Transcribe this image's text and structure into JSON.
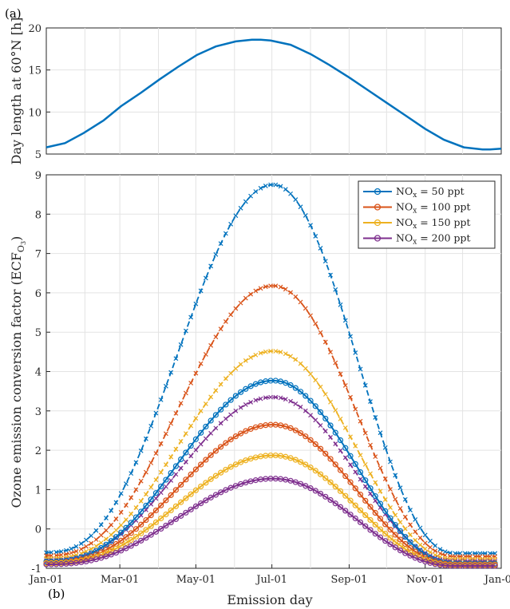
{
  "panel_labels": {
    "a": "(a)",
    "b": "(b)"
  },
  "chart_data": [
    {
      "type": "line",
      "panel": "(a)",
      "ylabel": "Day length at 60°N [h]",
      "ylim": [
        5,
        20
      ],
      "yticks": [
        "5",
        "10",
        "15",
        "20"
      ],
      "grid": true,
      "x_range": [
        "Jan-01",
        "Jan-01 (next year)"
      ],
      "series": [
        {
          "color": "#0072BD",
          "x_days": [
            0,
            15,
            30,
            46,
            60,
            76,
            91,
            106,
            121,
            136,
            152,
            165,
            172,
            180,
            196,
            212,
            227,
            243,
            258,
            273,
            288,
            304,
            319,
            335,
            350,
            356,
            365
          ],
          "values": [
            5.8,
            6.3,
            7.5,
            9.0,
            10.7,
            12.3,
            13.9,
            15.4,
            16.8,
            17.8,
            18.4,
            18.6,
            18.6,
            18.5,
            18.0,
            16.9,
            15.6,
            14.1,
            12.6,
            11.1,
            9.6,
            8.0,
            6.7,
            5.8,
            5.55,
            5.55,
            5.65
          ]
        }
      ]
    },
    {
      "type": "line",
      "panel": "(b)",
      "xlabel": "Emission day",
      "ylabel": "Ozone emission conversion factor (ECF",
      "ylabel_sub": "O",
      "ylabel_subsub": "3",
      "ylabel_end": ")",
      "ylim": [
        -1,
        9
      ],
      "yticks": [
        "-1",
        "0",
        "1",
        "2",
        "3",
        "4",
        "5",
        "6",
        "7",
        "8",
        "9"
      ],
      "xticks": [
        "Jan-01",
        "Mar-01",
        "May-01",
        "Jul-01",
        "Sep-01",
        "Nov-01",
        "Jan-01"
      ],
      "grid": true,
      "legend_position": "top-right",
      "legend": [
        {
          "prefix": "NO",
          "sub": "x",
          "suffix": " = 50 ppt",
          "color": "#0072BD"
        },
        {
          "prefix": "NO",
          "sub": "x",
          "suffix": " = 100 ppt",
          "color": "#D95319"
        },
        {
          "prefix": "NO",
          "sub": "x",
          "suffix": " = 150 ppt",
          "color": "#EDB120"
        },
        {
          "prefix": "NO",
          "sub": "x",
          "suffix": " = 200 ppt",
          "color": "#7E2F8E"
        }
      ],
      "solid_series_circle_markers": [
        {
          "legend_index": 0,
          "color": "#0072BD",
          "peak": 3.77,
          "jan_value": -0.83,
          "dec_value": -0.88
        },
        {
          "legend_index": 1,
          "color": "#D95319",
          "peak": 2.65,
          "jan_value": -0.86,
          "dec_value": -0.9
        },
        {
          "legend_index": 2,
          "color": "#EDB120",
          "peak": 1.87,
          "jan_value": -0.87,
          "dec_value": -0.92
        },
        {
          "legend_index": 3,
          "color": "#7E2F8E",
          "peak": 1.28,
          "jan_value": -0.9,
          "dec_value": -0.94
        }
      ],
      "dashed_series_cross_markers": [
        {
          "color": "#0072BD",
          "peak": 8.75,
          "jan_value": -0.6,
          "dec_value": -0.62
        },
        {
          "color": "#D95319",
          "peak": 6.18,
          "jan_value": -0.68,
          "dec_value": -0.7
        },
        {
          "color": "#EDB120",
          "peak": 4.52,
          "jan_value": -0.75,
          "dec_value": -0.77
        },
        {
          "color": "#7E2F8E",
          "peak": 3.35,
          "jan_value": -0.8,
          "dec_value": -0.82
        }
      ],
      "shape_note": "Each series rises from its Jan-01 value to a peak near Jul-01 (day ~182) and falls back to a minimum by late November, staying near that minimum until Dec-31."
    }
  ]
}
